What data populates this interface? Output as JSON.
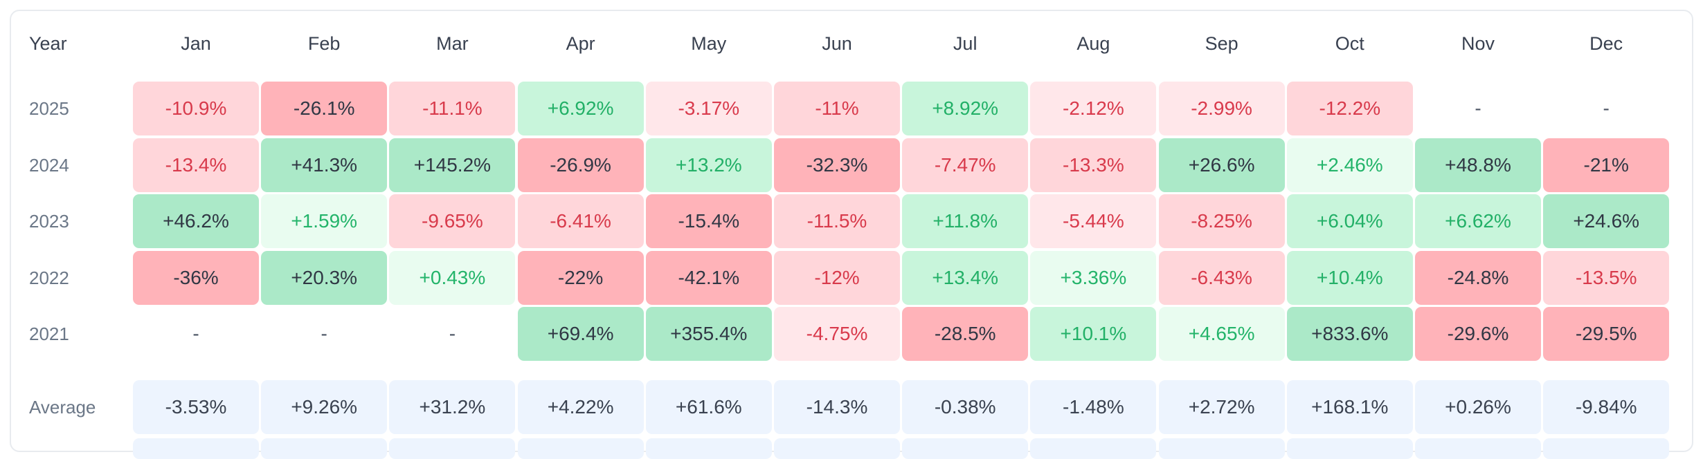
{
  "table": {
    "year_header": "Year",
    "months": [
      "Jan",
      "Feb",
      "Mar",
      "Apr",
      "May",
      "Jun",
      "Jul",
      "Aug",
      "Sep",
      "Oct",
      "Nov",
      "Dec"
    ],
    "rows": [
      {
        "year": "2025",
        "values": [
          "-10.9%",
          "-26.1%",
          "-11.1%",
          "+6.92%",
          "-3.17%",
          "-11%",
          "+8.92%",
          "-2.12%",
          "-2.99%",
          "-12.2%",
          "-",
          "-"
        ]
      },
      {
        "year": "2024",
        "values": [
          "-13.4%",
          "+41.3%",
          "+145.2%",
          "-26.9%",
          "+13.2%",
          "-32.3%",
          "-7.47%",
          "-13.3%",
          "+26.6%",
          "+2.46%",
          "+48.8%",
          "-21%"
        ]
      },
      {
        "year": "2023",
        "values": [
          "+46.2%",
          "+1.59%",
          "-9.65%",
          "-6.41%",
          "-15.4%",
          "-11.5%",
          "+11.8%",
          "-5.44%",
          "-8.25%",
          "+6.04%",
          "+6.62%",
          "+24.6%"
        ]
      },
      {
        "year": "2022",
        "values": [
          "-36%",
          "+20.3%",
          "+0.43%",
          "-22%",
          "-42.1%",
          "-12%",
          "+13.4%",
          "+3.36%",
          "-6.43%",
          "+10.4%",
          "-24.8%",
          "-13.5%"
        ]
      },
      {
        "year": "2021",
        "values": [
          "-",
          "-",
          "-",
          "+69.4%",
          "+355.4%",
          "-4.75%",
          "-28.5%",
          "+10.1%",
          "+4.65%",
          "+833.6%",
          "-29.6%",
          "-29.5%"
        ]
      }
    ],
    "average": {
      "label": "Average",
      "values": [
        "-3.53%",
        "+9.26%",
        "+31.2%",
        "+4.22%",
        "+61.6%",
        "-14.3%",
        "-0.38%",
        "-1.48%",
        "+2.72%",
        "+168.1%",
        "+0.26%",
        "-9.84%"
      ]
    }
  },
  "colors": {
    "negative_text": "#d93a4c",
    "positive_text": "#23b46a",
    "neutral_text": "#303744",
    "average_bg": "#edf4fe"
  }
}
